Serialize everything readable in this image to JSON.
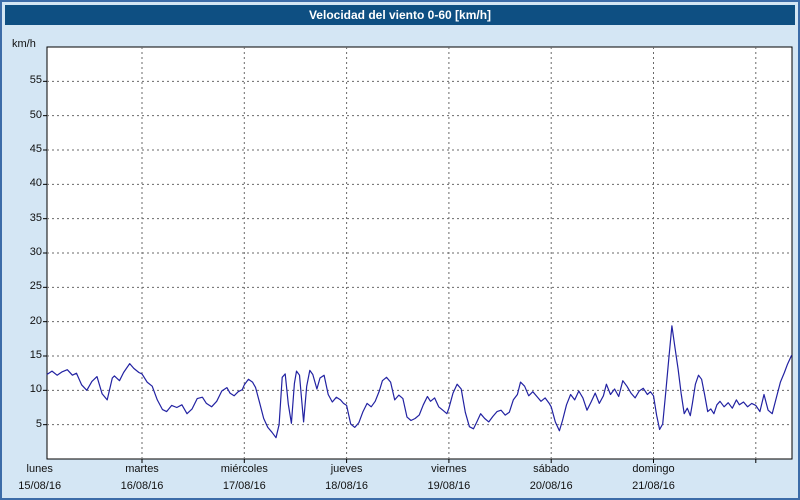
{
  "window": {
    "title": "Velocidad del viento 0-60 [km/h]"
  },
  "colors": {
    "frame_border": "#3c6ca8",
    "background": "#d4e6f4",
    "titlebar": "#0e4f82",
    "plot_bg": "#ffffff",
    "plot_border": "#000000",
    "grid": "#6a6a6a",
    "line": "#2222a2",
    "text": "#111111"
  },
  "chart_data": {
    "type": "line",
    "title": "Velocidad del viento 0-60 [km/h]",
    "xlabel": "",
    "ylabel": "km/h",
    "ylim": [
      0,
      60
    ],
    "y_ticks": [
      5,
      10,
      15,
      20,
      25,
      30,
      35,
      40,
      45,
      50,
      55
    ],
    "grid": true,
    "legend_position": "none",
    "x_days": [
      {
        "name": "lunes",
        "date": "15/08/16"
      },
      {
        "name": "martes",
        "date": "16/08/16"
      },
      {
        "name": "miércoles",
        "date": "17/08/16"
      },
      {
        "name": "jueves",
        "date": "18/08/16"
      },
      {
        "name": "viernes",
        "date": "19/08/16"
      },
      {
        "name": "sábado",
        "date": "20/08/16"
      },
      {
        "name": "domingo",
        "date": "21/08/16"
      }
    ],
    "x_unit": "days_since_monday_00h",
    "x_range_days": [
      0.07,
      7.35
    ],
    "series": [
      {
        "name": "wind-speed-kmh",
        "points": [
          [
            0.07,
            12.3
          ],
          [
            0.12,
            12.8
          ],
          [
            0.17,
            12.2
          ],
          [
            0.22,
            12.7
          ],
          [
            0.27,
            13.0
          ],
          [
            0.32,
            12.2
          ],
          [
            0.36,
            12.5
          ],
          [
            0.41,
            10.8
          ],
          [
            0.46,
            10.0
          ],
          [
            0.51,
            11.3
          ],
          [
            0.56,
            12.0
          ],
          [
            0.61,
            9.5
          ],
          [
            0.66,
            8.6
          ],
          [
            0.71,
            11.8
          ],
          [
            0.73,
            12.1
          ],
          [
            0.78,
            11.4
          ],
          [
            0.82,
            12.6
          ],
          [
            0.88,
            13.9
          ],
          [
            0.92,
            13.2
          ],
          [
            0.97,
            12.6
          ],
          [
            1.0,
            12.4
          ],
          [
            1.05,
            11.2
          ],
          [
            1.1,
            10.6
          ],
          [
            1.15,
            8.6
          ],
          [
            1.2,
            7.2
          ],
          [
            1.24,
            6.9
          ],
          [
            1.29,
            7.8
          ],
          [
            1.34,
            7.5
          ],
          [
            1.39,
            7.9
          ],
          [
            1.44,
            6.6
          ],
          [
            1.49,
            7.3
          ],
          [
            1.54,
            8.8
          ],
          [
            1.59,
            9.0
          ],
          [
            1.63,
            8.1
          ],
          [
            1.68,
            7.6
          ],
          [
            1.73,
            8.4
          ],
          [
            1.78,
            9.9
          ],
          [
            1.83,
            10.4
          ],
          [
            1.86,
            9.6
          ],
          [
            1.9,
            9.2
          ],
          [
            1.94,
            9.8
          ],
          [
            1.98,
            10.1
          ],
          [
            2.0,
            10.8
          ],
          [
            2.04,
            11.6
          ],
          [
            2.08,
            11.2
          ],
          [
            2.11,
            10.4
          ],
          [
            2.15,
            8.2
          ],
          [
            2.19,
            5.9
          ],
          [
            2.23,
            4.6
          ],
          [
            2.27,
            3.9
          ],
          [
            2.31,
            3.1
          ],
          [
            2.34,
            5.0
          ],
          [
            2.37,
            11.9
          ],
          [
            2.4,
            12.4
          ],
          [
            2.43,
            8.0
          ],
          [
            2.46,
            5.2
          ],
          [
            2.49,
            11.0
          ],
          [
            2.51,
            12.8
          ],
          [
            2.54,
            12.2
          ],
          [
            2.58,
            5.4
          ],
          [
            2.61,
            10.6
          ],
          [
            2.64,
            12.9
          ],
          [
            2.67,
            12.3
          ],
          [
            2.71,
            10.2
          ],
          [
            2.74,
            11.8
          ],
          [
            2.78,
            12.2
          ],
          [
            2.82,
            9.4
          ],
          [
            2.86,
            8.3
          ],
          [
            2.9,
            9.0
          ],
          [
            2.94,
            8.6
          ],
          [
            2.97,
            8.1
          ],
          [
            3.0,
            7.8
          ],
          [
            3.04,
            5.1
          ],
          [
            3.08,
            4.6
          ],
          [
            3.12,
            5.3
          ],
          [
            3.16,
            6.9
          ],
          [
            3.2,
            8.1
          ],
          [
            3.24,
            7.6
          ],
          [
            3.28,
            8.4
          ],
          [
            3.32,
            9.9
          ],
          [
            3.35,
            11.4
          ],
          [
            3.39,
            11.9
          ],
          [
            3.43,
            11.2
          ],
          [
            3.47,
            8.6
          ],
          [
            3.51,
            9.3
          ],
          [
            3.55,
            8.8
          ],
          [
            3.59,
            6.1
          ],
          [
            3.63,
            5.6
          ],
          [
            3.67,
            5.9
          ],
          [
            3.71,
            6.4
          ],
          [
            3.75,
            7.9
          ],
          [
            3.79,
            9.1
          ],
          [
            3.82,
            8.4
          ],
          [
            3.86,
            8.9
          ],
          [
            3.9,
            7.6
          ],
          [
            3.94,
            7.1
          ],
          [
            3.98,
            6.6
          ],
          [
            4.0,
            7.4
          ],
          [
            4.04,
            9.6
          ],
          [
            4.08,
            10.9
          ],
          [
            4.12,
            10.2
          ],
          [
            4.16,
            6.8
          ],
          [
            4.2,
            4.7
          ],
          [
            4.24,
            4.4
          ],
          [
            4.27,
            5.3
          ],
          [
            4.31,
            6.6
          ],
          [
            4.35,
            5.9
          ],
          [
            4.39,
            5.4
          ],
          [
            4.43,
            6.2
          ],
          [
            4.47,
            6.9
          ],
          [
            4.51,
            7.1
          ],
          [
            4.55,
            6.4
          ],
          [
            4.59,
            6.8
          ],
          [
            4.63,
            8.6
          ],
          [
            4.67,
            9.4
          ],
          [
            4.7,
            11.2
          ],
          [
            4.74,
            10.6
          ],
          [
            4.78,
            9.2
          ],
          [
            4.82,
            9.8
          ],
          [
            4.86,
            9.1
          ],
          [
            4.9,
            8.4
          ],
          [
            4.94,
            8.9
          ],
          [
            4.98,
            8.1
          ],
          [
            5.0,
            7.6
          ],
          [
            5.04,
            5.4
          ],
          [
            5.08,
            4.1
          ],
          [
            5.11,
            5.6
          ],
          [
            5.15,
            7.9
          ],
          [
            5.19,
            9.4
          ],
          [
            5.23,
            8.6
          ],
          [
            5.27,
            9.9
          ],
          [
            5.31,
            8.9
          ],
          [
            5.35,
            7.1
          ],
          [
            5.39,
            8.3
          ],
          [
            5.43,
            9.6
          ],
          [
            5.47,
            8.1
          ],
          [
            5.51,
            9.2
          ],
          [
            5.54,
            10.9
          ],
          [
            5.58,
            9.4
          ],
          [
            5.62,
            10.2
          ],
          [
            5.66,
            9.1
          ],
          [
            5.7,
            11.4
          ],
          [
            5.74,
            10.6
          ],
          [
            5.78,
            9.6
          ],
          [
            5.82,
            8.9
          ],
          [
            5.86,
            9.9
          ],
          [
            5.9,
            10.3
          ],
          [
            5.94,
            9.4
          ],
          [
            5.97,
            9.8
          ],
          [
            6.0,
            9.2
          ],
          [
            6.03,
            6.4
          ],
          [
            6.06,
            4.3
          ],
          [
            6.09,
            5.1
          ],
          [
            6.12,
            9.8
          ],
          [
            6.15,
            14.6
          ],
          [
            6.18,
            19.4
          ],
          [
            6.21,
            16.2
          ],
          [
            6.24,
            13.1
          ],
          [
            6.27,
            9.6
          ],
          [
            6.3,
            6.6
          ],
          [
            6.33,
            7.4
          ],
          [
            6.36,
            6.3
          ],
          [
            6.38,
            8.1
          ],
          [
            6.41,
            10.9
          ],
          [
            6.44,
            12.2
          ],
          [
            6.47,
            11.6
          ],
          [
            6.5,
            9.4
          ],
          [
            6.53,
            6.9
          ],
          [
            6.56,
            7.3
          ],
          [
            6.59,
            6.6
          ],
          [
            6.62,
            7.9
          ],
          [
            6.65,
            8.4
          ],
          [
            6.69,
            7.6
          ],
          [
            6.73,
            8.2
          ],
          [
            6.77,
            7.4
          ],
          [
            6.81,
            8.6
          ],
          [
            6.84,
            7.9
          ],
          [
            6.88,
            8.3
          ],
          [
            6.92,
            7.6
          ],
          [
            6.96,
            8.1
          ],
          [
            7.0,
            7.8
          ],
          [
            7.04,
            6.9
          ],
          [
            7.08,
            9.4
          ],
          [
            7.12,
            7.1
          ],
          [
            7.16,
            6.6
          ],
          [
            7.2,
            8.9
          ],
          [
            7.24,
            11.2
          ],
          [
            7.28,
            12.6
          ],
          [
            7.31,
            13.8
          ],
          [
            7.35,
            15.1
          ]
        ]
      }
    ]
  }
}
